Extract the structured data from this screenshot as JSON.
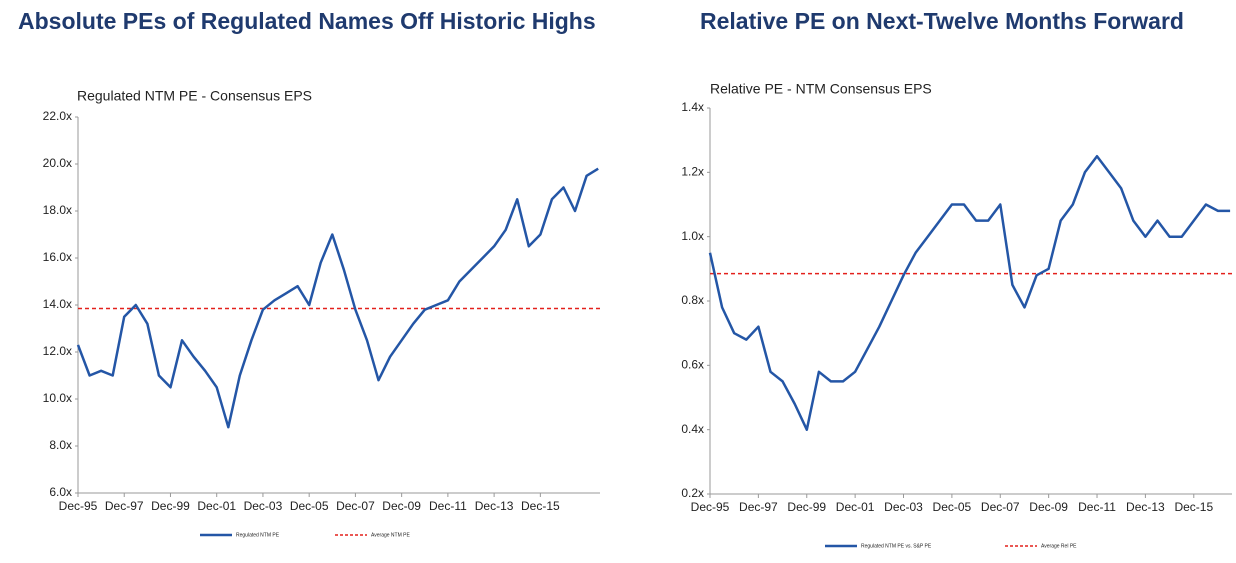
{
  "chart_data": [
    {
      "type": "line",
      "title": "Absolute PEs of Regulated Names Off Historic Highs",
      "subtitle": "Regulated NTM PE - Consensus EPS",
      "x": [
        1995.92,
        1996.42,
        1996.92,
        1997.42,
        1997.92,
        1998.42,
        1998.92,
        1999.42,
        1999.92,
        2000.42,
        2000.92,
        2001.42,
        2001.92,
        2002.42,
        2002.92,
        2003.42,
        2003.92,
        2004.42,
        2004.92,
        2005.42,
        2005.92,
        2006.42,
        2006.92,
        2007.42,
        2007.92,
        2008.42,
        2008.92,
        2009.42,
        2009.92,
        2010.42,
        2010.92,
        2011.42,
        2011.92,
        2012.42,
        2012.92,
        2013.42,
        2013.92,
        2014.42,
        2014.92,
        2015.42,
        2015.92,
        2016.42,
        2016.92,
        2017.42,
        2017.92,
        2018.42
      ],
      "series": [
        {
          "name": "Regulated NTM PE",
          "color": "#2456a6",
          "values": [
            12.3,
            11.0,
            11.2,
            11.0,
            13.5,
            14.0,
            13.2,
            11.0,
            10.5,
            12.5,
            11.8,
            11.2,
            10.5,
            8.8,
            11.0,
            12.5,
            13.8,
            14.2,
            14.5,
            14.8,
            14.0,
            15.8,
            17.0,
            15.5,
            13.8,
            12.5,
            10.8,
            11.8,
            12.5,
            13.2,
            13.8,
            14.0,
            14.2,
            15.0,
            15.5,
            16.0,
            16.5,
            17.2,
            18.5,
            16.5,
            17.0,
            18.5,
            19.0,
            18.0,
            19.5,
            19.8
          ]
        }
      ],
      "reference_line": {
        "name": "Average NTM PE",
        "value": 13.85,
        "color": "#e3211c"
      },
      "xlim": [
        1995.92,
        2018.5
      ],
      "xticks": [
        {
          "value": 1995.92,
          "label": "Dec-95"
        },
        {
          "value": 1997.92,
          "label": "Dec-97"
        },
        {
          "value": 1999.92,
          "label": "Dec-99"
        },
        {
          "value": 2001.92,
          "label": "Dec-01"
        },
        {
          "value": 2003.92,
          "label": "Dec-03"
        },
        {
          "value": 2005.92,
          "label": "Dec-05"
        },
        {
          "value": 2007.92,
          "label": "Dec-07"
        },
        {
          "value": 2009.92,
          "label": "Dec-09"
        },
        {
          "value": 2011.92,
          "label": "Dec-11"
        },
        {
          "value": 2013.92,
          "label": "Dec-13"
        },
        {
          "value": 2015.92,
          "label": "Dec-15"
        }
      ],
      "ylim": [
        6,
        22
      ],
      "yticks": [
        {
          "value": 6,
          "label": "6.0x"
        },
        {
          "value": 8,
          "label": "8.0x"
        },
        {
          "value": 10,
          "label": "10.0x"
        },
        {
          "value": 12,
          "label": "12.0x"
        },
        {
          "value": 14,
          "label": "14.0x"
        },
        {
          "value": 16,
          "label": "16.0x"
        },
        {
          "value": 18,
          "label": "18.0x"
        },
        {
          "value": 20,
          "label": "20.0x"
        },
        {
          "value": 22,
          "label": "22.0x"
        }
      ],
      "grid": false,
      "legend": "bottom"
    },
    {
      "type": "line",
      "title": "Relative PE on Next-Twelve Months Forward",
      "subtitle": "Relative PE - NTM Consensus EPS",
      "x": [
        1995.92,
        1996.42,
        1996.92,
        1997.42,
        1997.92,
        1998.42,
        1998.92,
        1999.42,
        1999.92,
        2000.42,
        2000.92,
        2001.42,
        2001.92,
        2002.42,
        2002.92,
        2003.42,
        2003.92,
        2004.42,
        2004.92,
        2005.42,
        2005.92,
        2006.42,
        2006.92,
        2007.42,
        2007.92,
        2008.42,
        2008.92,
        2009.42,
        2009.92,
        2010.42,
        2010.92,
        2011.42,
        2011.92,
        2012.42,
        2012.92,
        2013.42,
        2013.92,
        2014.42,
        2014.92,
        2015.42,
        2015.92,
        2016.42,
        2016.92,
        2017.42
      ],
      "series": [
        {
          "name": "Regulated NTM PE vs. S&P PE",
          "color": "#2456a6",
          "values": [
            0.95,
            0.78,
            0.7,
            0.68,
            0.72,
            0.58,
            0.55,
            0.48,
            0.4,
            0.58,
            0.55,
            0.55,
            0.58,
            0.65,
            0.72,
            0.8,
            0.88,
            0.95,
            1.0,
            1.05,
            1.1,
            1.1,
            1.05,
            1.05,
            1.1,
            0.85,
            0.78,
            0.88,
            0.9,
            1.05,
            1.1,
            1.2,
            1.25,
            1.2,
            1.15,
            1.05,
            1.0,
            1.05,
            1.0,
            1.0,
            1.05,
            1.1,
            1.08,
            1.08
          ]
        }
      ],
      "reference_line": {
        "name": "Average Rel PE",
        "value": 0.885,
        "color": "#e3211c"
      },
      "xlim": [
        1995.92,
        2017.5
      ],
      "xticks": [
        {
          "value": 1995.92,
          "label": "Dec-95"
        },
        {
          "value": 1997.92,
          "label": "Dec-97"
        },
        {
          "value": 1999.92,
          "label": "Dec-99"
        },
        {
          "value": 2001.92,
          "label": "Dec-01"
        },
        {
          "value": 2003.92,
          "label": "Dec-03"
        },
        {
          "value": 2005.92,
          "label": "Dec-05"
        },
        {
          "value": 2007.92,
          "label": "Dec-07"
        },
        {
          "value": 2009.92,
          "label": "Dec-09"
        },
        {
          "value": 2011.92,
          "label": "Dec-11"
        },
        {
          "value": 2013.92,
          "label": "Dec-13"
        },
        {
          "value": 2015.92,
          "label": "Dec-15"
        }
      ],
      "ylim": [
        0.2,
        1.4
      ],
      "yticks": [
        {
          "value": 0.2,
          "label": "0.2x"
        },
        {
          "value": 0.4,
          "label": "0.4x"
        },
        {
          "value": 0.6,
          "label": "0.6x"
        },
        {
          "value": 0.8,
          "label": "0.8x"
        },
        {
          "value": 1.0,
          "label": "1.0x"
        },
        {
          "value": 1.2,
          "label": "1.2x"
        },
        {
          "value": 1.4,
          "label": "1.4x"
        }
      ],
      "grid": false,
      "legend": "bottom"
    }
  ]
}
